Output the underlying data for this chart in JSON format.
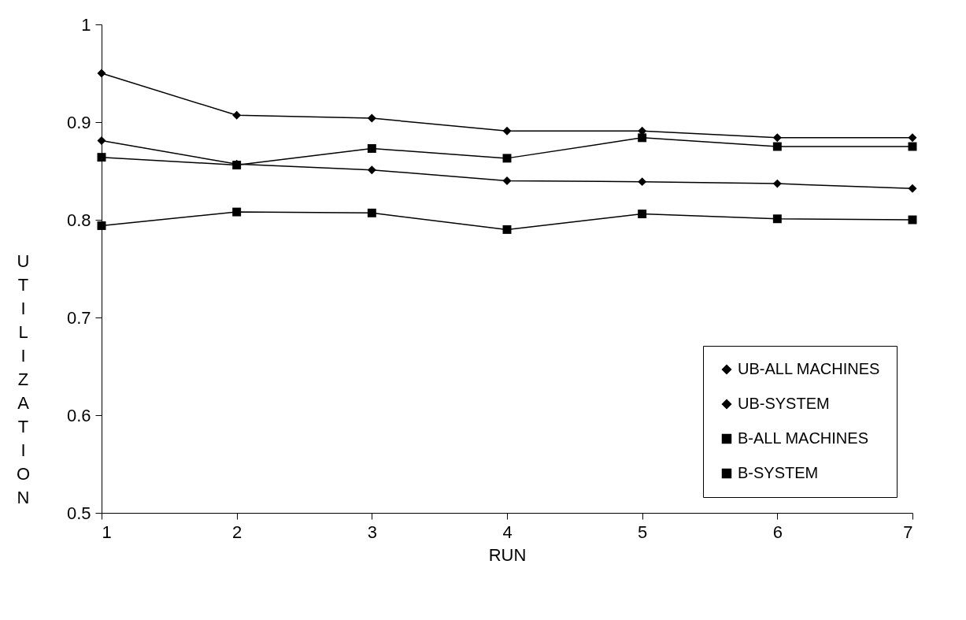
{
  "chart_data": {
    "type": "line",
    "xlabel": "RUN",
    "ylabel": "UTILIZATION",
    "x": [
      1,
      2,
      3,
      4,
      5,
      6,
      7
    ],
    "xlim": [
      1,
      7
    ],
    "xticks": [
      1,
      2,
      3,
      4,
      5,
      6,
      7
    ],
    "ylim": [
      0.5,
      1
    ],
    "yticks": [
      0.5,
      0.6,
      0.7,
      0.8,
      0.9,
      1
    ],
    "legend": "bottom right",
    "series": [
      {
        "name": "UB-ALL MACHINES",
        "color": "#000000",
        "marker": "diamond",
        "values": [
          0.95,
          0.907,
          0.904,
          0.891,
          0.891,
          0.884,
          0.884
        ]
      },
      {
        "name": "UB-SYSTEM",
        "color": "#000000",
        "marker": "diamond",
        "values": [
          0.881,
          0.857,
          0.851,
          0.84,
          0.839,
          0.837,
          0.832
        ]
      },
      {
        "name": "B-ALL MACHINES",
        "color": "#000000",
        "marker": "square",
        "values": [
          0.864,
          0.856,
          0.873,
          0.863,
          0.884,
          0.875,
          0.875
        ]
      },
      {
        "name": "B-SYSTEM",
        "color": "#000000",
        "marker": "square",
        "values": [
          0.794,
          0.808,
          0.807,
          0.79,
          0.806,
          0.801,
          0.8
        ]
      }
    ]
  }
}
